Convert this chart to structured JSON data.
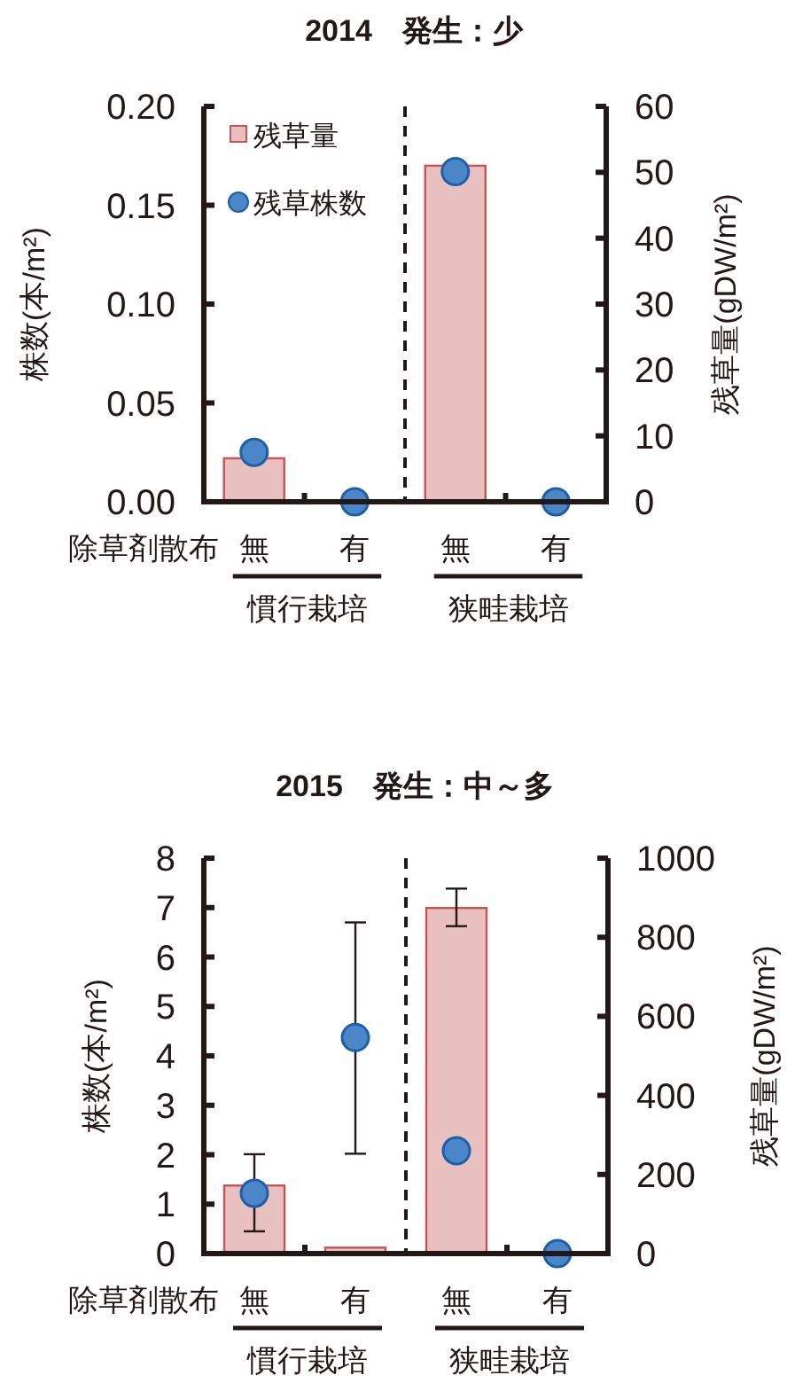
{
  "chart_data": [
    {
      "type": "bar",
      "title": "2014　発生：少",
      "xlabel": "除草剤散布",
      "ylabel": "株数(本/m²)",
      "y2label": "残草量(gDW/m²)",
      "categories": [
        "無",
        "有",
        "無",
        "有"
      ],
      "series": [
        {
          "name": "残草量",
          "axis": "y2",
          "color": "#e8c0bf",
          "values": [
            6.6,
            0,
            51,
            0
          ]
        },
        {
          "name": "残草株数",
          "type": "scatter",
          "axis": "y",
          "color": "#4a86c8",
          "marker": "circle",
          "values": [
            0.025,
            0,
            0.167,
            0
          ]
        }
      ],
      "ylim": [
        0,
        0.2
      ],
      "yticks": [
        {
          "value": 0,
          "label": "0.00"
        },
        {
          "value": 0.05,
          "label": "0.05"
        },
        {
          "value": 0.1,
          "label": "0.10"
        },
        {
          "value": 0.15,
          "label": "0.15"
        },
        {
          "value": 0.2,
          "label": "0.20"
        }
      ],
      "y2lim": [
        0,
        60
      ],
      "y2ticks": [
        0,
        10,
        20,
        30,
        40,
        50,
        60
      ],
      "annotations": [
        "慣行栽培",
        "狭畦栽培"
      ],
      "legend": "top left",
      "grid": false
    },
    {
      "type": "bar",
      "title": "2015　発生：中～多",
      "xlabel": "除草剤散布",
      "ylabel": "株数(本/m²)",
      "y2label": "残草量(gDW/m²)",
      "categories": [
        "無",
        "有",
        "無",
        "有"
      ],
      "series": [
        {
          "axis": "y2",
          "color": "#e8c0bf",
          "values": [
            172,
            15,
            874,
            0
          ],
          "errors": [
            null,
            null,
            [
              828,
              923
            ],
            null
          ]
        },
        {
          "type": "scatter",
          "axis": "y",
          "color": "#4a86c8",
          "marker": "circle",
          "values": [
            1.22,
            4.37,
            2.08,
            0
          ],
          "errors": [
            [
              0.45,
              2.01
            ],
            [
              2.02,
              6.7
            ],
            null,
            null
          ]
        }
      ],
      "ylim": [
        0,
        8
      ],
      "yticks": [
        0,
        1,
        2,
        3,
        4,
        5,
        6,
        7,
        8
      ],
      "y2lim": [
        0,
        1000
      ],
      "y2ticks": [
        0,
        200,
        400,
        600,
        800,
        1000
      ],
      "annotations": [
        "慣行栽培",
        "狭畦栽培"
      ],
      "legend": false,
      "grid": false
    }
  ]
}
